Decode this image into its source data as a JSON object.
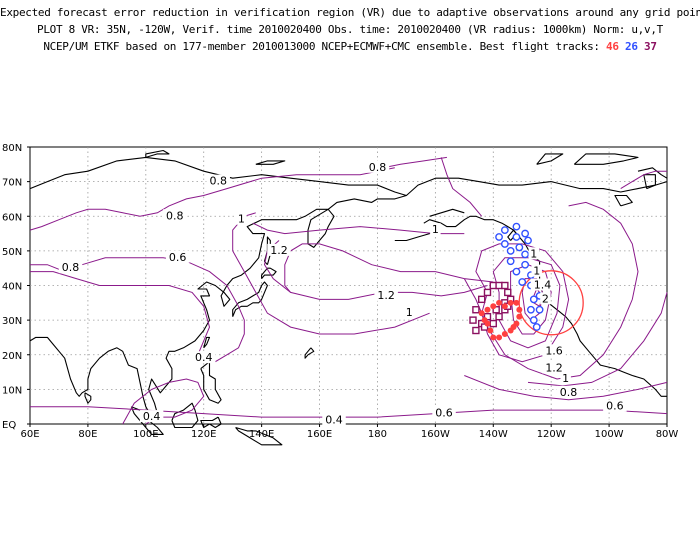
{
  "header": {
    "line1": "Expected forecast error reduction in verification region (VR) due to adaptive observations around any grid point.",
    "line2": "PLOT 8 VR: 35N, -120W, Verif. time 2010020400 Obs. time: 2010020400 (VR radius: 1000km) Norm: u,v,T",
    "line3_prefix": "NCEP/UM ETKF based on 177-member 2010013000 NCEP+ECMWF+CMC ensemble. Best flight tracks:",
    "tracks": [
      {
        "id": "46",
        "color": "#ff4040"
      },
      {
        "id": "26",
        "color": "#3050ff"
      },
      {
        "id": "37",
        "color": "#8b1060"
      }
    ]
  },
  "map": {
    "lat_labels": [
      "80N",
      "70N",
      "60N",
      "50N",
      "40N",
      "30N",
      "20N",
      "10N",
      "EQ"
    ],
    "lon_labels": [
      "60E",
      "80E",
      "100E",
      "120E",
      "140E",
      "160E",
      "180",
      "160W",
      "140W",
      "120W",
      "100W",
      "80W"
    ],
    "contour_labels": [
      {
        "text": "0.8",
        "lon": 180,
        "lat": 74
      },
      {
        "text": "0.8",
        "lon": 125,
        "lat": 70
      },
      {
        "text": "0.8",
        "lon": 110,
        "lat": 60
      },
      {
        "text": "0.6",
        "lon": 111,
        "lat": 48
      },
      {
        "text": "0.8",
        "lon": 74,
        "lat": 45
      },
      {
        "text": "1",
        "lon": 133,
        "lat": 59
      },
      {
        "text": "1.2",
        "lon": 146,
        "lat": 50
      },
      {
        "text": "1",
        "lon": 200,
        "lat": 56
      },
      {
        "text": "1.2",
        "lon": 183,
        "lat": 37
      },
      {
        "text": "1",
        "lon": 191,
        "lat": 32
      },
      {
        "text": "1",
        "lon": 234,
        "lat": 49
      },
      {
        "text": "1",
        "lon": 235,
        "lat": 44
      },
      {
        "text": "1.4",
        "lon": 237,
        "lat": 40
      },
      {
        "text": "2",
        "lon": 238,
        "lat": 36
      },
      {
        "text": "1.6",
        "lon": 241,
        "lat": 21
      },
      {
        "text": "1.2",
        "lon": 241,
        "lat": 16
      },
      {
        "text": "1",
        "lon": 245,
        "lat": 13
      },
      {
        "text": "0.8",
        "lon": 246,
        "lat": 9
      },
      {
        "text": "0.6",
        "lon": 262,
        "lat": 5
      },
      {
        "text": "0.4",
        "lon": 120,
        "lat": 19
      },
      {
        "text": "0.4",
        "lon": 102,
        "lat": 2
      },
      {
        "text": "0.4",
        "lon": 165,
        "lat": 1
      },
      {
        "text": "0.6",
        "lon": 203,
        "lat": 3
      }
    ],
    "colors": {
      "contour": "#8b1a8b",
      "coast": "#000000",
      "grid": "#9a9a9a",
      "vr_circle": "#ff4040"
    }
  }
}
